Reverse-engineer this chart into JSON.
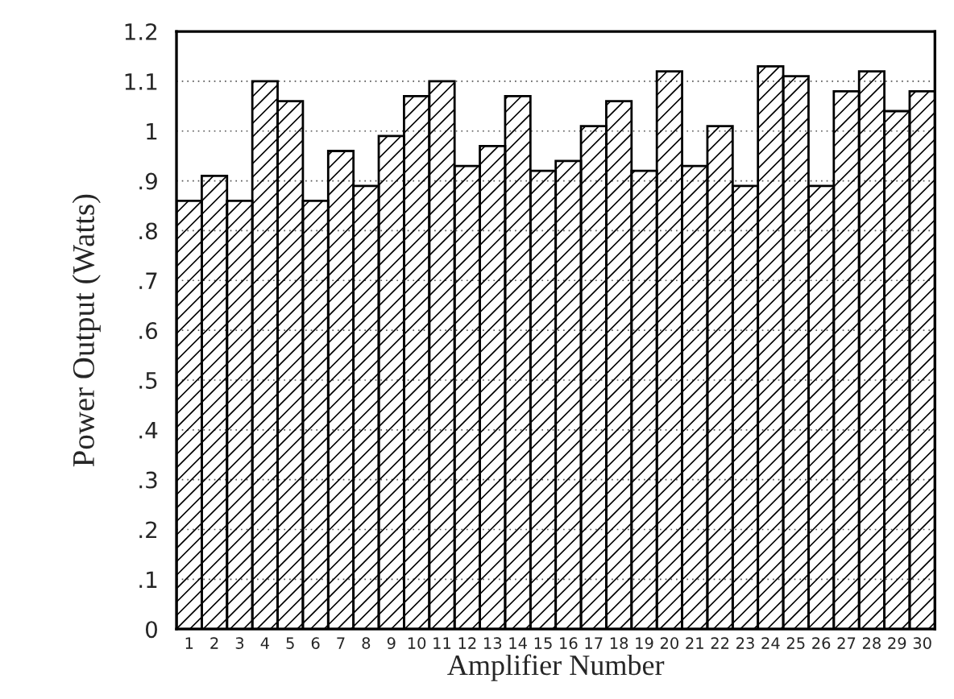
{
  "chart_data": {
    "type": "bar",
    "xlabel": "Amplifier Number",
    "ylabel": "Power Output (Watts)",
    "categories": [
      "1",
      "2",
      "3",
      "4",
      "5",
      "6",
      "7",
      "8",
      "9",
      "10",
      "11",
      "12",
      "13",
      "14",
      "15",
      "16",
      "17",
      "18",
      "19",
      "20",
      "21",
      "22",
      "23",
      "24",
      "25",
      "26",
      "27",
      "28",
      "29",
      "30"
    ],
    "values": [
      0.86,
      0.91,
      0.86,
      1.1,
      1.06,
      0.86,
      0.96,
      0.89,
      0.99,
      1.07,
      1.1,
      0.93,
      0.97,
      1.07,
      0.92,
      0.94,
      1.01,
      1.06,
      0.92,
      1.12,
      0.93,
      1.01,
      0.89,
      1.13,
      1.11,
      0.89,
      1.08,
      1.12,
      1.04,
      1.08
    ],
    "color": "#000000",
    "ylim": [
      0,
      1.2
    ],
    "yticks": [
      0,
      {
        "value": 0.1,
        "label": ".1"
      },
      {
        "value": 0.2,
        "label": ".2"
      },
      {
        "value": 0.3,
        "label": ".3"
      },
      {
        "value": 0.4,
        "label": ".4"
      },
      {
        "value": 0.5,
        "label": ".5"
      },
      {
        "value": 0.6,
        "label": ".6"
      },
      {
        "value": 0.7,
        "label": ".7"
      },
      {
        "value": 0.8,
        "label": ".8"
      },
      {
        "value": 0.9,
        "label": ".9"
      },
      1,
      1.1,
      1.2
    ],
    "grid": "y",
    "legend": false
  }
}
